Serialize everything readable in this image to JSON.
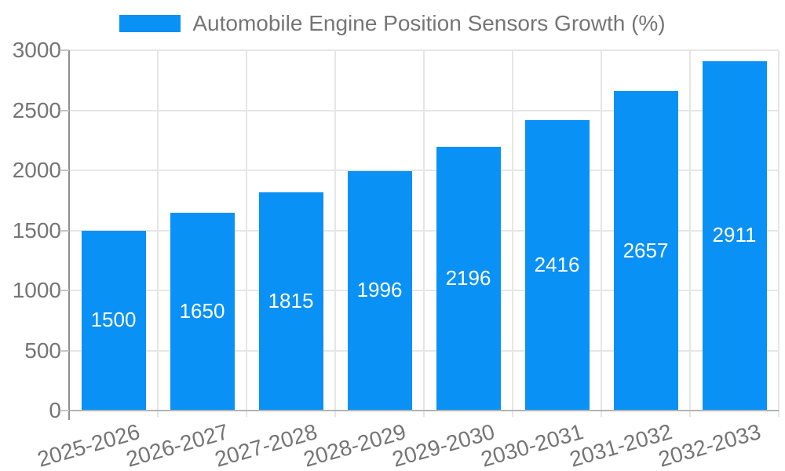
{
  "legend": {
    "label": "Automobile Engine Position Sensors Growth (%)"
  },
  "chart_data": {
    "type": "bar",
    "title": "Automobile Engine Position Sensors Growth (%)",
    "legend_entries": [
      "Automobile Engine Position Sensors Growth (%)"
    ],
    "legend_position": "top-center",
    "categories": [
      "2025-2026",
      "2026-2027",
      "2027-2028",
      "2028-2029",
      "2029-2030",
      "2030-2031",
      "2031-2032",
      "2032-2033"
    ],
    "series": [
      {
        "name": "Automobile Engine Position Sensors Growth (%)",
        "values": [
          1500,
          1650,
          1815,
          1996,
          2196,
          2416,
          2657,
          2911
        ]
      }
    ],
    "bar_value_labels": [
      "1500",
      "1650",
      "1815",
      "1996",
      "2196",
      "2416",
      "2657",
      "2911"
    ],
    "xlabel": "",
    "ylabel": "",
    "ylim": [
      0,
      3000
    ],
    "yticks": [
      0,
      500,
      1000,
      1500,
      2000,
      2500,
      3000
    ],
    "grid": true,
    "x_label_rotation_deg": -16,
    "colors": {
      "bar": "#0a91f5",
      "value_label": "#ffffff",
      "axis_label": "#757575",
      "legend_text": "#757575",
      "gridline": "#e6e6e6",
      "y_axis_line": "#8f8f8f",
      "baseline": "#b3b3b3",
      "tick": "#c4c4c4",
      "background": "#ffffff"
    }
  }
}
